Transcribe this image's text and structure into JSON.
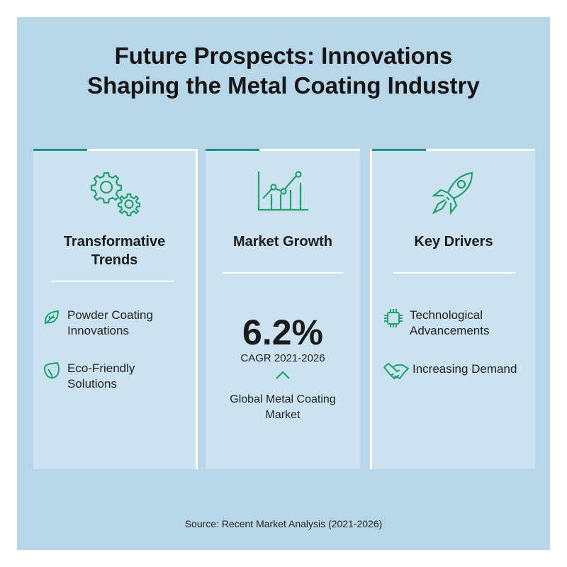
{
  "title_line1": "Future Prospects: Innovations",
  "title_line2": "Shaping the Metal Coating Industry",
  "accent_color": "#1a9080",
  "icon_color": "#22a06b",
  "cards": [
    {
      "icon": "gears-icon",
      "heading_line1": "Transformative",
      "heading_line2": "Trends",
      "items": [
        {
          "icon": "leaf-icon",
          "line1": "Powder Coating",
          "line2": "Innovations"
        },
        {
          "icon": "leaf-icon",
          "line1": "Eco-Friendly",
          "line2": "Solutions"
        }
      ]
    },
    {
      "icon": "growth-chart-icon",
      "heading": "Market Growth",
      "stat": "6.2%",
      "stat_label": "CAGR 2021-2026",
      "stat_icon": "chevron-up-icon",
      "desc_line1": "Global Metal Coating",
      "desc_line2": "Market"
    },
    {
      "icon": "rocket-icon",
      "heading": "Key Drivers",
      "items": [
        {
          "icon": "chip-icon",
          "line1": "Technological",
          "line2": "Advancements"
        },
        {
          "icon": "handshake-icon",
          "line1": "Increasing Demand"
        }
      ]
    }
  ],
  "source": "Source: Recent Market Analysis (2021-2026)"
}
